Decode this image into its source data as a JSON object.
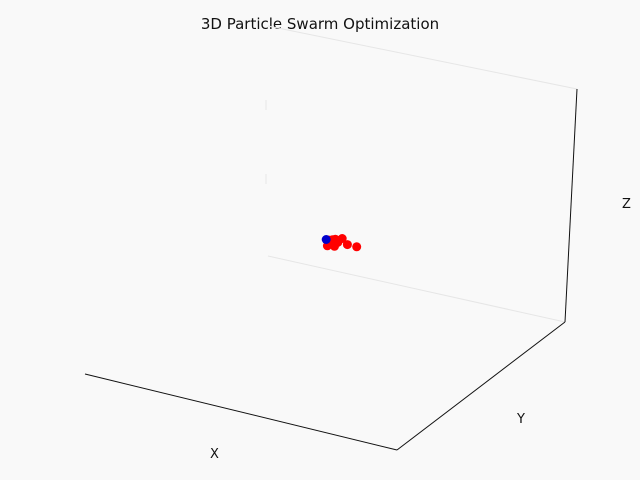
{
  "chart_data": {
    "type": "scatter",
    "title": "3D Particle Swarm Optimization",
    "xlabel": "X",
    "ylabel": "Y",
    "zlabel": "Z",
    "grid": false,
    "ticks": false,
    "series": [
      {
        "color": "#ff0000",
        "points": [
          {
            "x": -0.1,
            "y": 0.05,
            "z": 0.05
          },
          {
            "x": -0.06,
            "y": 0.0,
            "z": 0.04
          },
          {
            "x": -0.04,
            "y": 0.08,
            "z": 0.1
          },
          {
            "x": -0.02,
            "y": 0.02,
            "z": 0.02
          },
          {
            "x": 0.0,
            "y": -0.02,
            "z": 0.06
          },
          {
            "x": -0.03,
            "y": 0.06,
            "z": -0.02
          },
          {
            "x": 0.08,
            "y": 0.02,
            "z": 0.02
          },
          {
            "x": 0.14,
            "y": -0.04,
            "z": -0.04
          },
          {
            "x": -0.08,
            "y": 0.1,
            "z": 0.0
          }
        ]
      },
      {
        "color": "#0000cc",
        "points": [
          {
            "x": -0.08,
            "y": 0.12,
            "z": 0.12
          }
        ]
      }
    ]
  }
}
